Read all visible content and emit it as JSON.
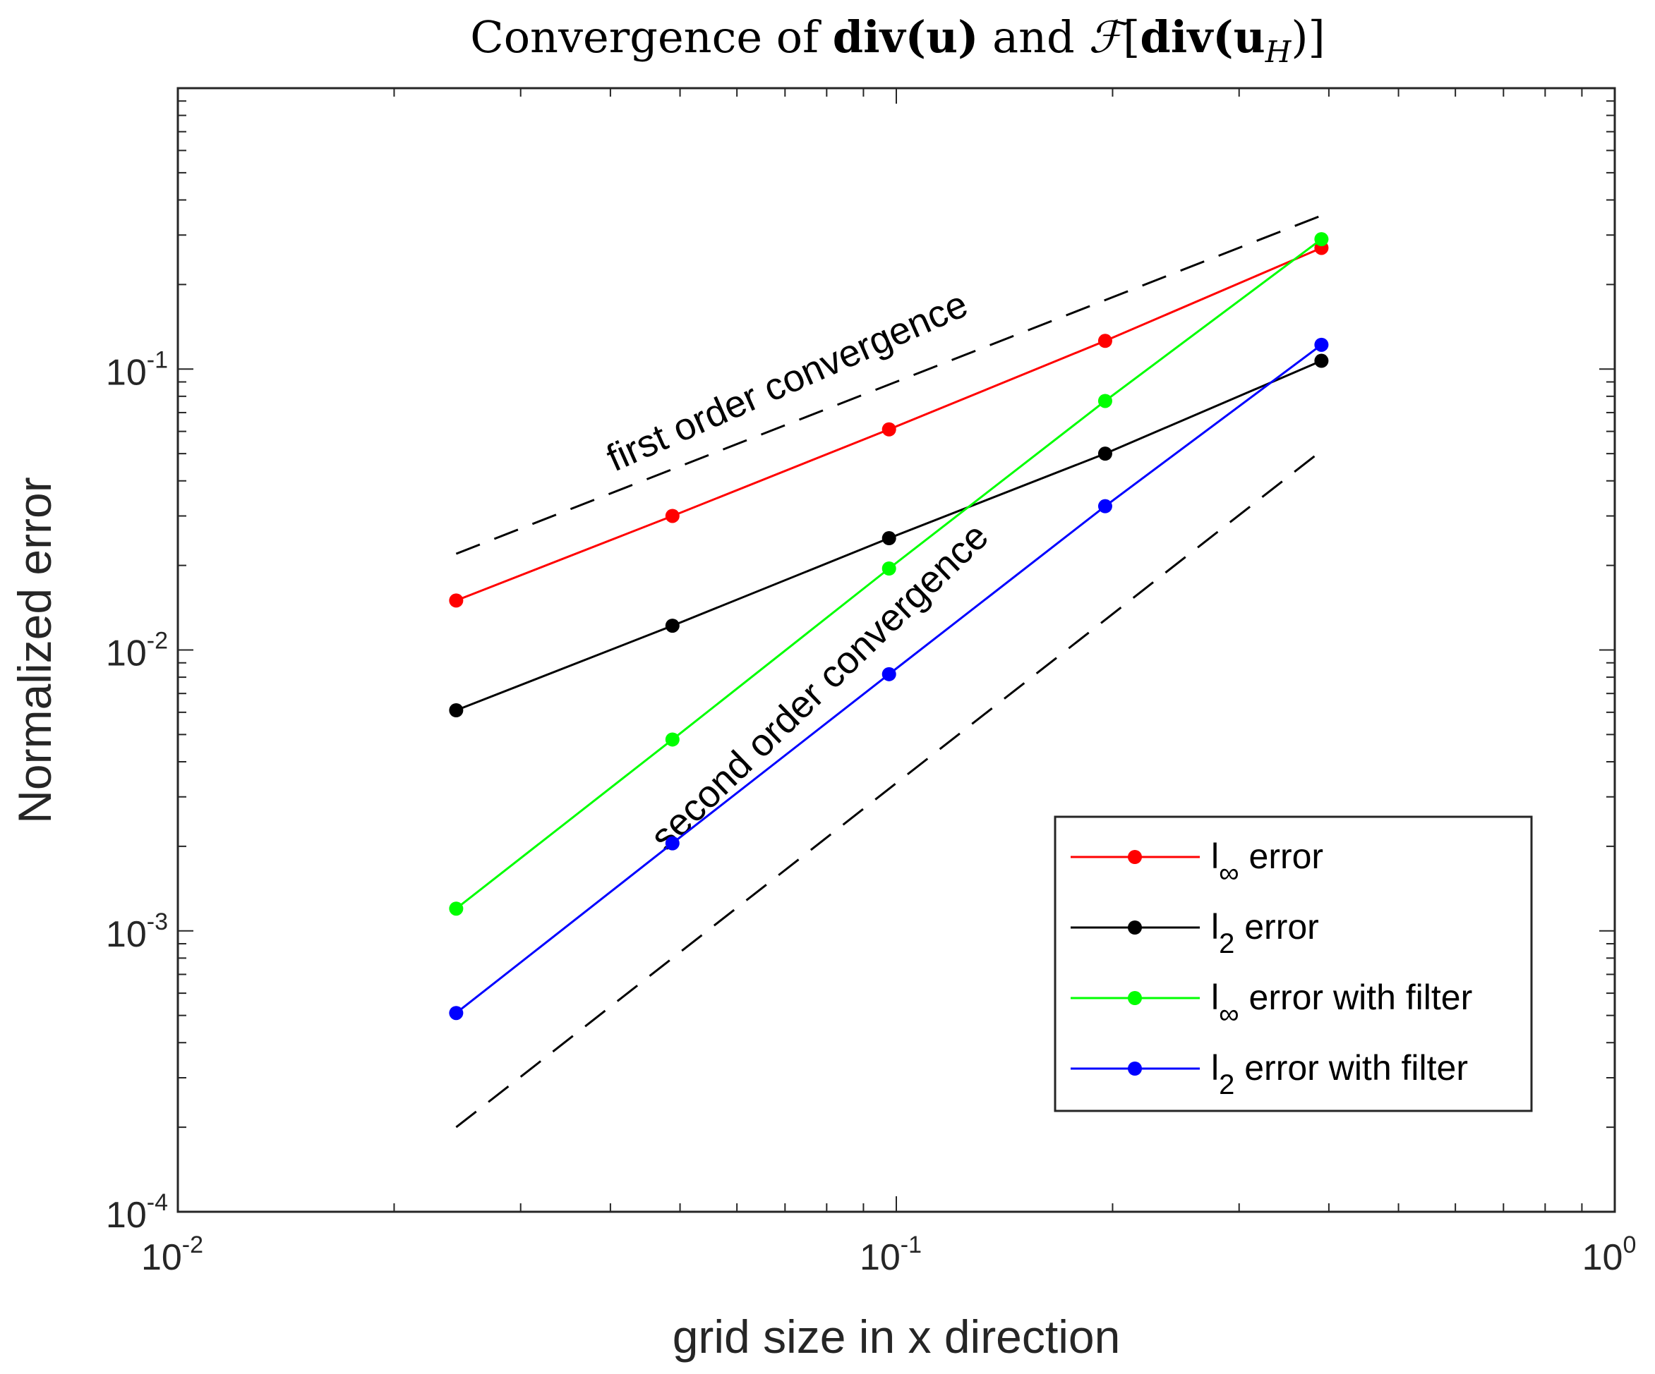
{
  "chart_data": {
    "type": "line",
    "title": "Convergence of div(u) and ℱ[div(u_H)]",
    "title_parts": {
      "prefix": "Convergence of ",
      "div1": "div(",
      "u1": "u",
      "close1": ")",
      "and": " and ",
      "script_f": "ℱ",
      "open_bracket": "[",
      "div2": "div(",
      "u2": "u",
      "sub_h": "H",
      "close2": ")]"
    },
    "xlabel": "grid size in x direction",
    "ylabel": "Normalized error",
    "xscale": "log",
    "yscale": "log",
    "xlim": [
      0.01,
      1
    ],
    "ylim": [
      0.0001,
      1
    ],
    "x_ticks": [
      {
        "base": "10",
        "exp": "-2",
        "value": 0.01
      },
      {
        "base": "10",
        "exp": "-1",
        "value": 0.1
      },
      {
        "base": "10",
        "exp": "0",
        "value": 1
      }
    ],
    "y_ticks": [
      {
        "base": "10",
        "exp": "-4",
        "value": 0.0001
      },
      {
        "base": "10",
        "exp": "-3",
        "value": 0.001
      },
      {
        "base": "10",
        "exp": "-2",
        "value": 0.01
      },
      {
        "base": "10",
        "exp": "-1",
        "value": 0.1
      }
    ],
    "x": [
      0.0244,
      0.0488,
      0.0977,
      0.1953,
      0.3906
    ],
    "series": [
      {
        "name": "l∞ error",
        "label_main": "l",
        "label_sub": "∞",
        "label_rest": " error",
        "color": "#ff0000",
        "values": [
          0.015,
          0.03,
          0.061,
          0.126,
          0.27
        ]
      },
      {
        "name": "l2 error",
        "label_main": "l",
        "label_sub": "2",
        "label_rest": " error",
        "color": "#000000",
        "values": [
          0.0061,
          0.0122,
          0.025,
          0.05,
          0.107
        ]
      },
      {
        "name": "l∞ error with filter",
        "label_main": "l",
        "label_sub": "∞",
        "label_rest": " error with filter",
        "color": "#00ff00",
        "values": [
          0.0012,
          0.0048,
          0.0195,
          0.077,
          0.29
        ]
      },
      {
        "name": "l2 error with filter",
        "label_main": "l",
        "label_sub": "2",
        "label_rest": " error with filter",
        "color": "#0000ff",
        "values": [
          0.00051,
          0.00205,
          0.0082,
          0.0325,
          0.122
        ]
      }
    ],
    "reference_lines": [
      {
        "name": "first order convergence",
        "x": [
          0.0244,
          0.3906
        ],
        "y": [
          0.022,
          0.352
        ],
        "color": "#000000",
        "style": "dashed"
      },
      {
        "name": "second order convergence",
        "x": [
          0.0244,
          0.3906
        ],
        "y": [
          0.0002,
          0.0512
        ],
        "color": "#000000",
        "style": "dashed"
      }
    ],
    "annotations": [
      {
        "text": "first order convergence",
        "x": 0.0405,
        "y": 0.043,
        "rotation_deg": -24
      },
      {
        "text": "second order convergence",
        "x": 0.0478,
        "y": 0.0019,
        "rotation_deg": -44
      }
    ],
    "legend_position": "bottom-right",
    "grid": false
  }
}
